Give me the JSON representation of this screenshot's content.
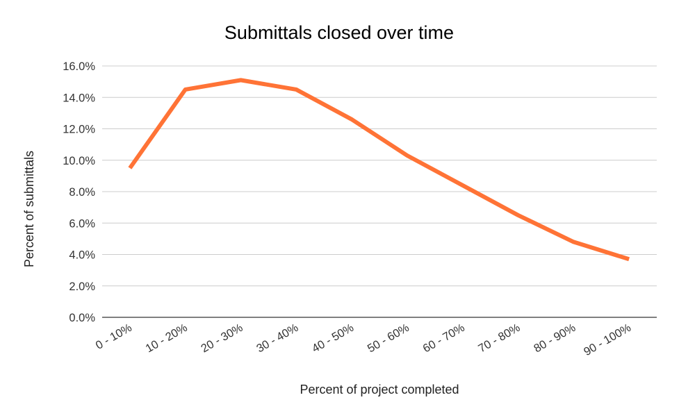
{
  "chart_data": {
    "type": "line",
    "title": "Submittals closed over time",
    "xlabel": "Percent of project completed",
    "ylabel": "Percent of submittals",
    "categories": [
      "0 - 10%",
      "10 - 20%",
      "20 - 30%",
      "30 - 40%",
      "40 - 50%",
      "50 - 60%",
      "60 - 70%",
      "70 - 80%",
      "80 - 90%",
      "90 - 100%"
    ],
    "series": [
      {
        "values": [
          9.5,
          14.5,
          15.1,
          14.5,
          12.6,
          10.3,
          8.4,
          6.5,
          4.8,
          3.7
        ],
        "color": "#ff7336"
      }
    ],
    "ylim": [
      0,
      16
    ],
    "yticks": [
      "0.0%",
      "2.0%",
      "4.0%",
      "6.0%",
      "8.0%",
      "10.0%",
      "12.0%",
      "14.0%",
      "16.0%"
    ],
    "grid": true,
    "legend": "none"
  }
}
